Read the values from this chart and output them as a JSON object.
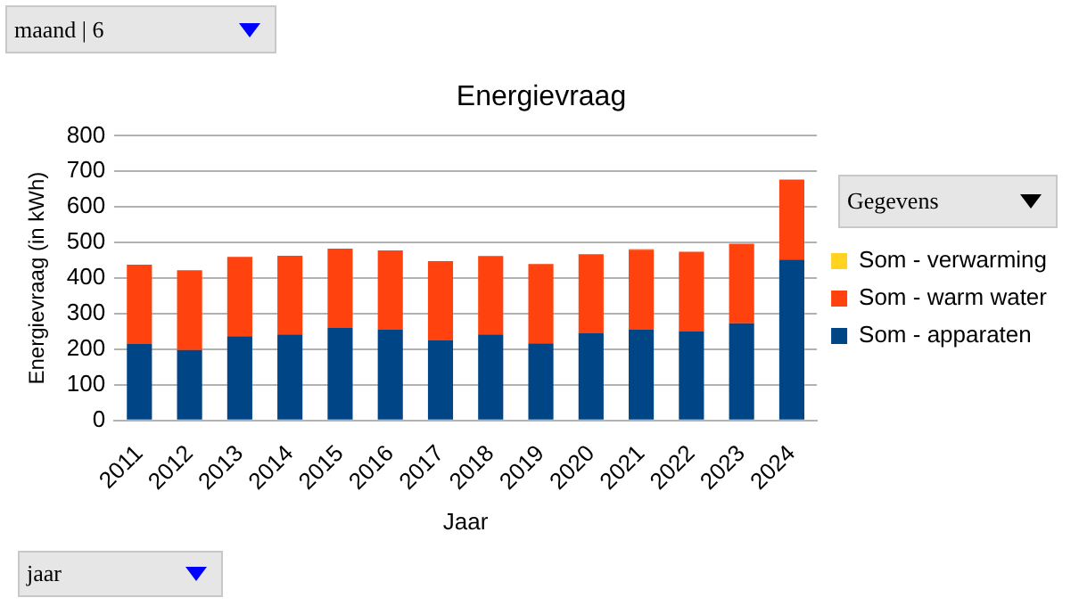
{
  "chart_data": {
    "type": "bar",
    "title": "Energievraag",
    "xlabel": "Jaar",
    "ylabel": "Energievraag (in kWh)",
    "categories": [
      "2011",
      "2012",
      "2013",
      "2014",
      "2015",
      "2016",
      "2017",
      "2018",
      "2019",
      "2020",
      "2021",
      "2022",
      "2023",
      "2024"
    ],
    "series": [
      {
        "name": "Som - apparaten",
        "color": "#004586",
        "values": [
          215,
          198,
          237,
          242,
          260,
          255,
          225,
          242,
          217,
          245,
          255,
          250,
          273,
          452
        ]
      },
      {
        "name": "Som - warm water",
        "color": "#ff420e",
        "values": [
          223,
          224,
          223,
          221,
          223,
          223,
          223,
          220,
          223,
          222,
          225,
          224,
          224,
          225
        ]
      },
      {
        "name": "Som - verwarming",
        "color": "#ffd320",
        "values": [
          0,
          0,
          0,
          0,
          0,
          0,
          0,
          0,
          0,
          0,
          3,
          0,
          0,
          0
        ]
      }
    ],
    "stacked": true,
    "ylim": [
      0,
      800
    ],
    "yticks": [
      0,
      100,
      200,
      300,
      400,
      500,
      600,
      700,
      800
    ],
    "grid": "y",
    "legend": "right",
    "annotations": [
      "maand | 6",
      "Gegevens",
      "jaar"
    ]
  }
}
